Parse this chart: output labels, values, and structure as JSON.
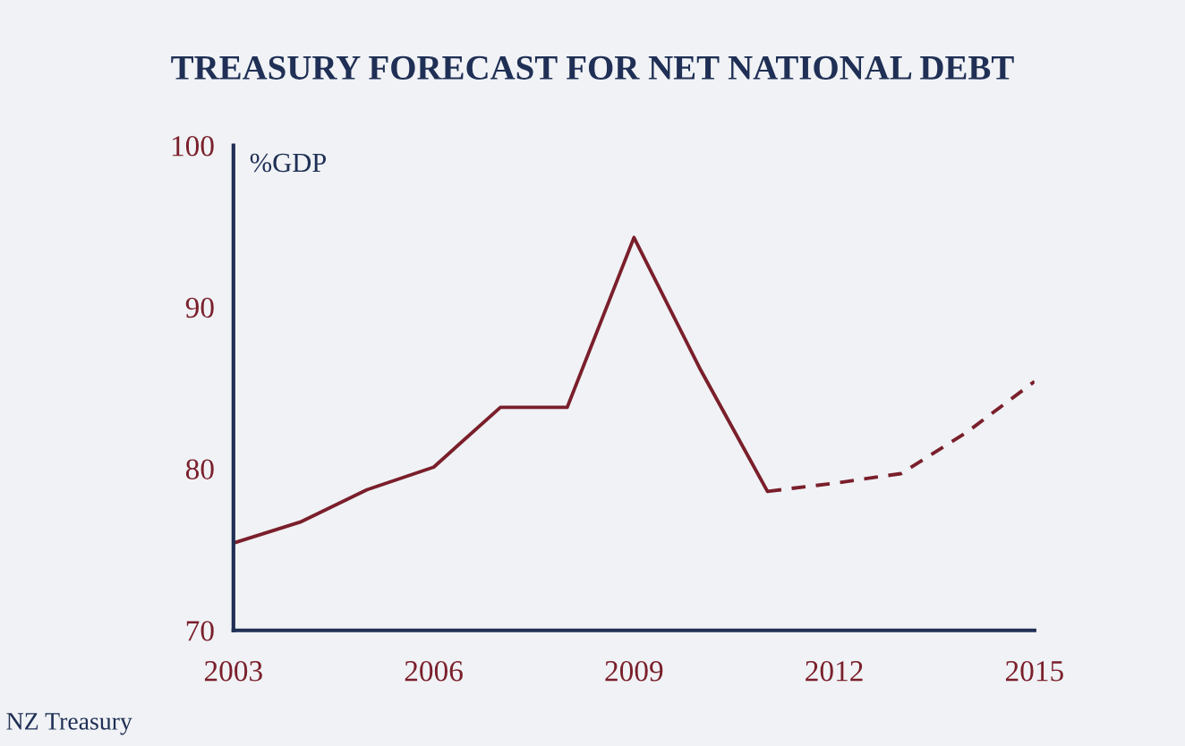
{
  "chart_data": {
    "type": "line",
    "title": "TREASURY FORECAST FOR NET NATIONAL DEBT",
    "ylabel": "%GDP",
    "annotations": [
      "NZ Treasury"
    ],
    "series": [
      {
        "color": "#7a1f2b",
        "line_style": "solid",
        "x": [
          2003,
          2004,
          2005,
          2006,
          2007,
          2008,
          2009,
          2010,
          2011
        ],
        "values": [
          75.4,
          76.7,
          78.7,
          80.1,
          83.8,
          83.8,
          94.3,
          86.1,
          78.6
        ]
      },
      {
        "color": "#7a1f2b",
        "line_style": "dashed",
        "x": [
          2011,
          2012,
          2013,
          2014,
          2015
        ],
        "values": [
          78.6,
          79.1,
          79.7,
          82.3,
          85.4
        ]
      }
    ],
    "xlim": [
      2003,
      2015
    ],
    "xticks": [
      2003,
      2006,
      2009,
      2012,
      2015
    ],
    "ylim": [
      70,
      100
    ],
    "yticks": [
      70,
      80,
      90,
      100
    ],
    "grid": false
  }
}
